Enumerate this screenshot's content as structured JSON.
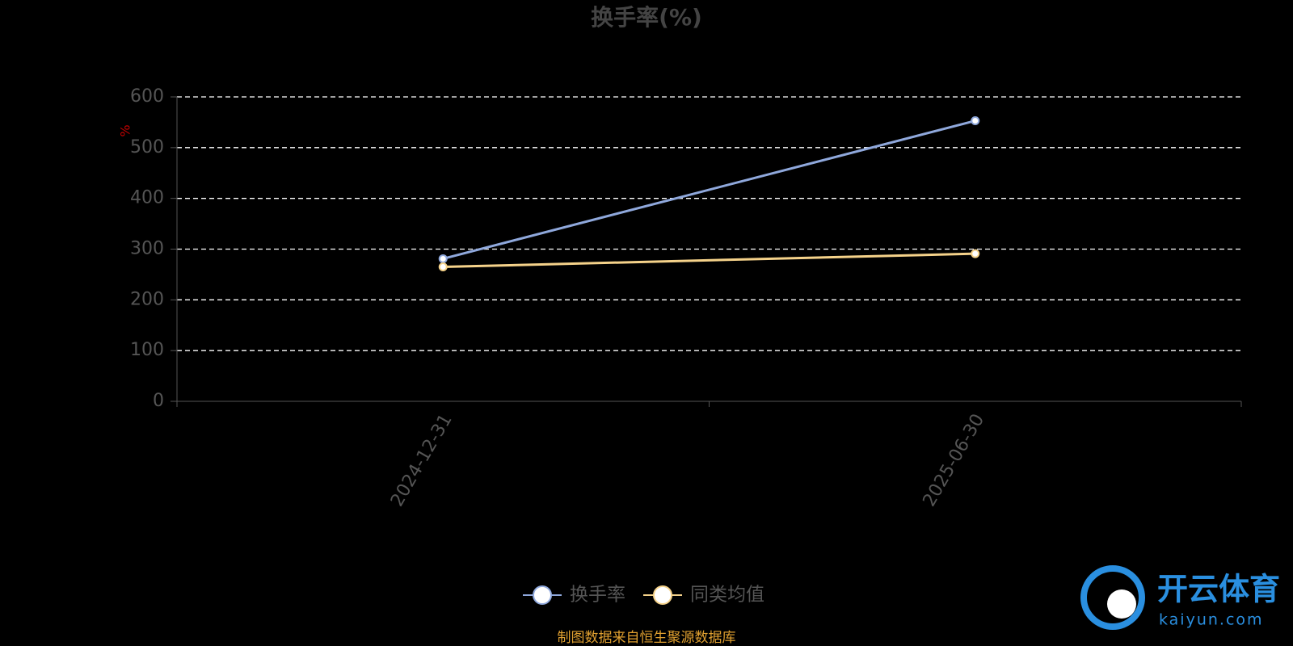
{
  "chart_data": {
    "type": "line",
    "title": "换手率(%)",
    "y_label": "%",
    "categories": [
      "2024-12-31",
      "2025-06-30"
    ],
    "series": [
      {
        "name": "换手率",
        "color": "#8fa8dc",
        "values": [
          281,
          553
        ]
      },
      {
        "name": "同类均值",
        "color": "#f5d28a",
        "values": [
          265,
          291
        ]
      }
    ],
    "ylim": [
      0,
      600
    ],
    "yticks": [
      0,
      100,
      200,
      300,
      400,
      500,
      600
    ],
    "grid": true,
    "legend": "bottom",
    "source": "制图数据来自恒生聚源数据库",
    "watermark": {
      "name": "开云体育",
      "url": "kaiyun.com"
    }
  }
}
